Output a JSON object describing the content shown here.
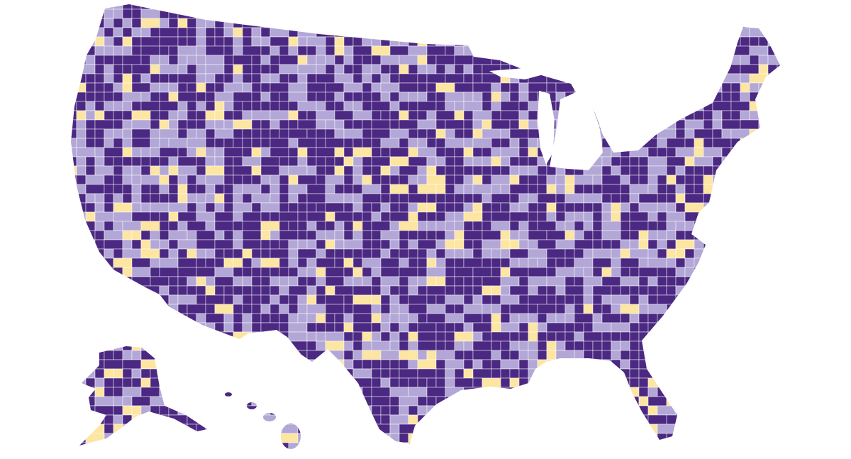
{
  "map": {
    "fill_colors": [
      "#4b2882",
      "#b2a7d6",
      "#fde5a2"
    ]
  }
}
